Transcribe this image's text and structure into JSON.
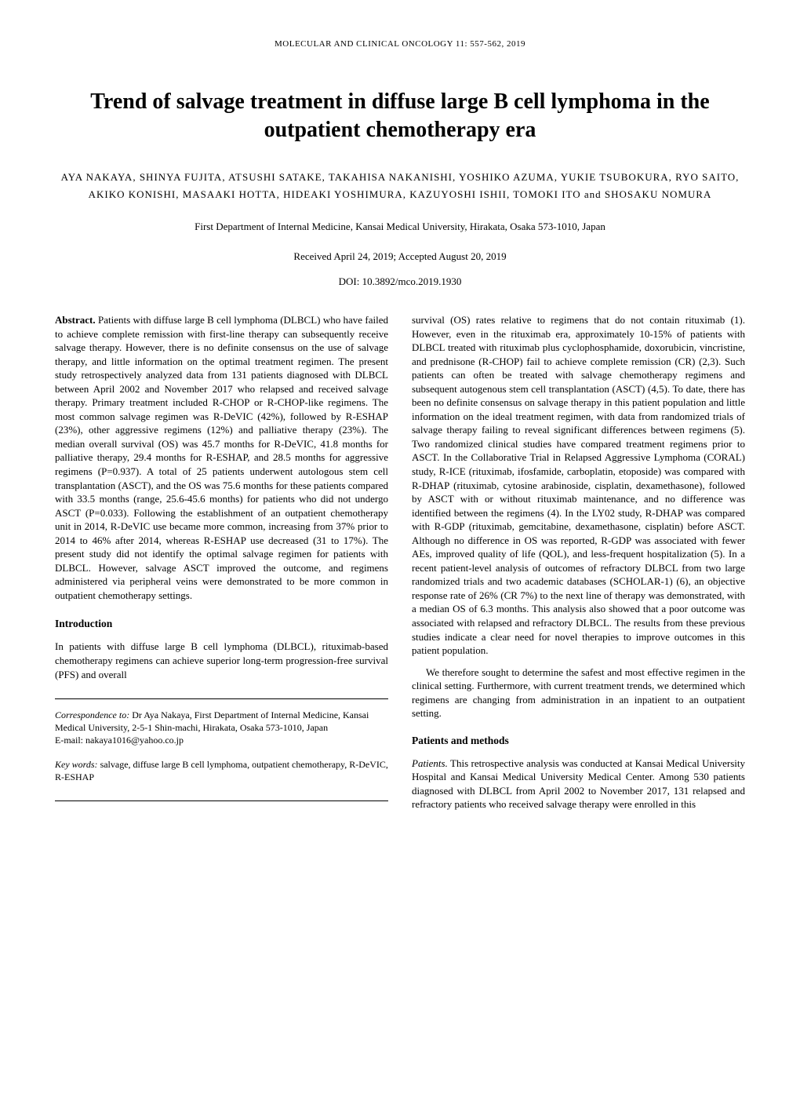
{
  "running_header": "MOLECULAR AND CLINICAL ONCOLOGY  11:  557-562,  2019",
  "title": "Trend of salvage treatment in diffuse large B cell lymphoma in the outpatient chemotherapy era",
  "authors": "AYA NAKAYA,  SHINYA FUJITA,  ATSUSHI SATAKE,  TAKAHISA NAKANISHI, YOSHIKO AZUMA,  YUKIE TSUBOKURA,  RYO SAITO,  AKIKO KONISHI,  MASAAKI HOTTA, HIDEAKI YOSHIMURA,  KAZUYOSHI ISHII,  TOMOKI ITO  and  SHOSAKU NOMURA",
  "affiliation": "First Department of Internal Medicine, Kansai Medical University, Hirakata, Osaka 573-1010, Japan",
  "dates": "Received April 24, 2019;  Accepted August 20, 2019",
  "doi": "DOI:  10.3892/mco.2019.1930",
  "abstract": {
    "label": "Abstract.",
    "text": " Patients with diffuse large B cell lymphoma (DLBCL) who have failed to achieve complete remission with first-line therapy can subsequently receive salvage therapy. However, there is no definite consensus on the use of salvage therapy, and little information on the optimal treatment regimen. The present study retrospectively analyzed data from 131 patients diagnosed with DLBCL between April 2002 and November 2017 who relapsed and received salvage therapy. Primary treatment included R-CHOP or R-CHOP-like regimens. The most common salvage regimen was R-DeVIC (42%), followed by R-ESHAP (23%), other aggressive regimens (12%) and palliative therapy (23%). The median overall survival (OS) was 45.7 months for R-DeVIC, 41.8 months for palliative therapy, 29.4 months for R-ESHAP, and 28.5 months for aggressive regimens (P=0.937). A total of 25 patients underwent autologous stem cell transplantation (ASCT), and the OS was 75.6 months for these patients compared with 33.5 months (range, 25.6-45.6 months) for patients who did not undergo ASCT (P=0.033). Following the establishment of an outpatient chemotherapy unit in 2014, R-DeVIC use became more common, increasing from 37% prior to 2014 to 46% after 2014, whereas R-ESHAP use decreased (31 to 17%). The present study did not identify the optimal salvage regimen for patients with DLBCL. However, salvage ASCT improved the outcome, and regimens administered via peripheral veins were demonstrated to be more common in outpatient chemotherapy settings."
  },
  "sections": {
    "introduction": {
      "heading": "Introduction",
      "para1": "In patients with diffuse large B cell lymphoma (DLBCL), rituximab-based chemotherapy regimens can achieve superior long-term progression-free survival (PFS) and overall",
      "col2_continuation": "survival (OS) rates relative to regimens that do not contain rituximab (1). However, even in the rituximab era, approximately 10-15% of patients with DLBCL treated with rituximab plus cyclophosphamide, doxorubicin, vincristine, and prednisone (R-CHOP) fail to achieve complete remission (CR) (2,3). Such patients can often be treated with salvage chemotherapy regimens and subsequent autogenous stem cell transplantation (ASCT) (4,5). To date, there has been no definite consensus on salvage therapy in this patient population and little information on the ideal treatment regimen, with data from randomized trials of salvage therapy failing to reveal significant differences between regimens (5). Two randomized clinical studies have compared treatment regimens prior to ASCT. In the Collaborative Trial in Relapsed Aggressive Lymphoma (CORAL) study, R-ICE (rituximab, ifosfamide, carboplatin, etoposide) was compared with R-DHAP (rituximab, cytosine arabinoside, cisplatin, dexamethasone), followed by ASCT with or without rituximab maintenance, and no difference was identified between the regimens (4). In the LY02 study, R-DHAP was compared with R-GDP (rituximab, gemcitabine, dexamethasone, cisplatin) before ASCT. Although no difference in OS was reported, R-GDP was associated with fewer AEs, improved quality of life (QOL), and less-frequent hospitalization (5). In a recent patient-level analysis of outcomes of refractory DLBCL from two large randomized trials and two academic databases (SCHOLAR-1) (6), an objective response rate of 26% (CR 7%) to the next line of therapy was demonstrated, with a median OS of 6.3 months. This analysis also showed that a poor outcome was associated with relapsed and refractory DLBCL. The results from these previous studies indicate a clear need for novel therapies to improve outcomes in this patient population.",
      "col2_para2": "We therefore sought to determine the safest and most effective regimen in the clinical setting. Furthermore, with current treatment trends, we determined which regimens are changing from administration in an inpatient to an outpatient setting."
    },
    "patients_methods": {
      "heading": "Patients and methods",
      "subsection_label": "Patients.",
      "para1": " This retrospective analysis was conducted at Kansai Medical University Hospital and Kansai Medical University Medical Center. Among 530 patients diagnosed with DLBCL from April 2002 to November 2017, 131 relapsed and refractory patients who received salvage therapy were enrolled in this"
    }
  },
  "correspondence": {
    "label": "Correspondence to: ",
    "text": "Dr Aya Nakaya, First Department of Internal Medicine, Kansai Medical University, 2-5-1 Shin-machi, Hirakata, Osaka 573-1010, Japan",
    "email_label": "E-mail: ",
    "email": "nakaya1016@yahoo.co.jp"
  },
  "keywords": {
    "label": "Key words: ",
    "text": "salvage, diffuse large B cell lymphoma, outpatient chemotherapy, R-DeVIC, R-ESHAP"
  }
}
